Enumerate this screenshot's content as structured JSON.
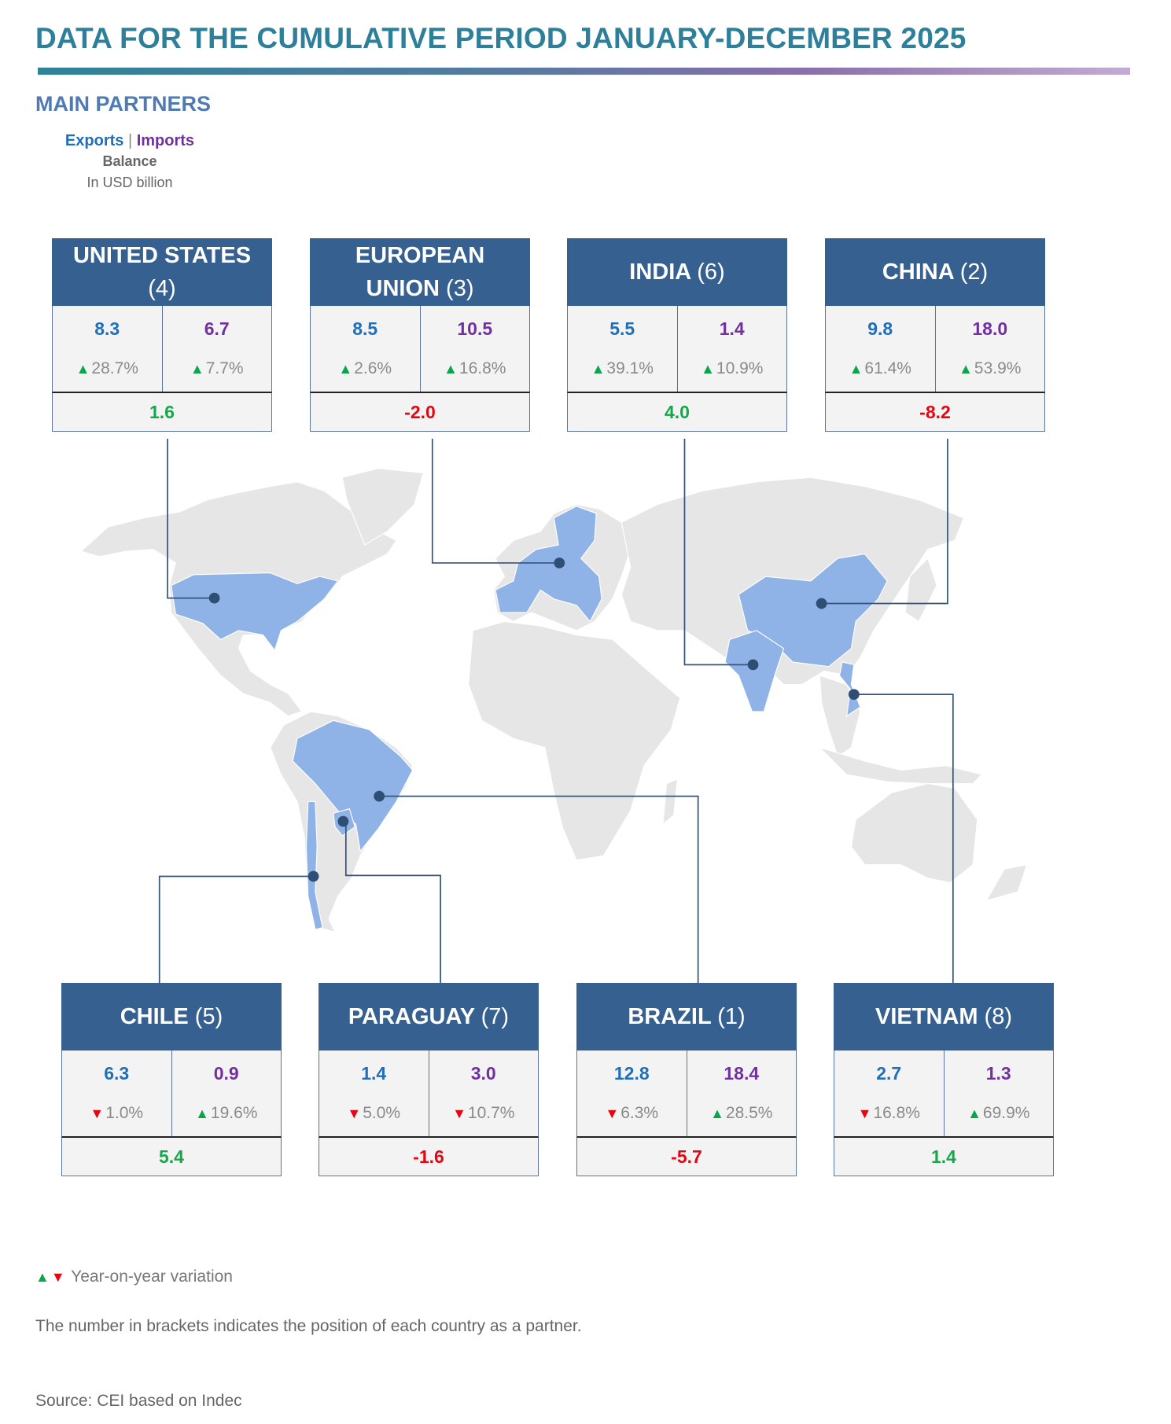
{
  "title": "DATA FOR THE CUMULATIVE PERIOD JANUARY-DECEMBER 2025",
  "subtitle": "MAIN PARTNERS",
  "legend": {
    "exports": "Exports",
    "separator": "|",
    "imports": "Imports",
    "balance": "Balance",
    "unit": "In USD billion"
  },
  "colors": {
    "exports": "#1f6fb8",
    "imports": "#7030a0",
    "positive": "#14a84a",
    "negative": "#e30613",
    "header": "#36608f",
    "highlight": "#8fb3e6"
  },
  "partners": [
    {
      "name": "UNITED STATES",
      "rank": "(4)",
      "exports": "8.3",
      "exports_var": "28.7%",
      "exports_dir": "up",
      "imports": "6.7",
      "imports_var": "7.7%",
      "imports_dir": "up",
      "balance": "1.6",
      "balance_sign": "pos"
    },
    {
      "name": "EUROPEAN UNION",
      "rank": "(3)",
      "exports": "8.5",
      "exports_var": "2.6%",
      "exports_dir": "up",
      "imports": "10.5",
      "imports_var": "16.8%",
      "imports_dir": "up",
      "balance": "-2.0",
      "balance_sign": "neg"
    },
    {
      "name": "INDIA",
      "rank": "(6)",
      "exports": "5.5",
      "exports_var": "39.1%",
      "exports_dir": "up",
      "imports": "1.4",
      "imports_var": "10.9%",
      "imports_dir": "up",
      "balance": "4.0",
      "balance_sign": "pos"
    },
    {
      "name": "CHINA",
      "rank": "(2)",
      "exports": "9.8",
      "exports_var": "61.4%",
      "exports_dir": "up",
      "imports": "18.0",
      "imports_var": "53.9%",
      "imports_dir": "up",
      "balance": "-8.2",
      "balance_sign": "neg"
    },
    {
      "name": "CHILE",
      "rank": "(5)",
      "exports": "6.3",
      "exports_var": "1.0%",
      "exports_dir": "down",
      "imports": "0.9",
      "imports_var": "19.6%",
      "imports_dir": "up",
      "balance": "5.4",
      "balance_sign": "pos"
    },
    {
      "name": "PARAGUAY",
      "rank": "(7)",
      "exports": "1.4",
      "exports_var": "5.0%",
      "exports_dir": "down",
      "imports": "3.0",
      "imports_var": "10.7%",
      "imports_dir": "down",
      "balance": "-1.6",
      "balance_sign": "neg"
    },
    {
      "name": "BRAZIL",
      "rank": "(1)",
      "exports": "12.8",
      "exports_var": "6.3%",
      "exports_dir": "down",
      "imports": "18.4",
      "imports_var": "28.5%",
      "imports_dir": "up",
      "balance": "-5.7",
      "balance_sign": "neg"
    },
    {
      "name": "VIETNAM",
      "rank": "(8)",
      "exports": "2.7",
      "exports_var": "16.8%",
      "exports_dir": "down",
      "imports": "1.3",
      "imports_var": "69.9%",
      "imports_dir": "up",
      "balance": "1.4",
      "balance_sign": "pos"
    }
  ],
  "footer": {
    "variation_note": "Year-on-year variation",
    "rank_note": "The number in brackets indicates the position of each country as a partner.",
    "source": "Source: CEI based on Indec"
  }
}
